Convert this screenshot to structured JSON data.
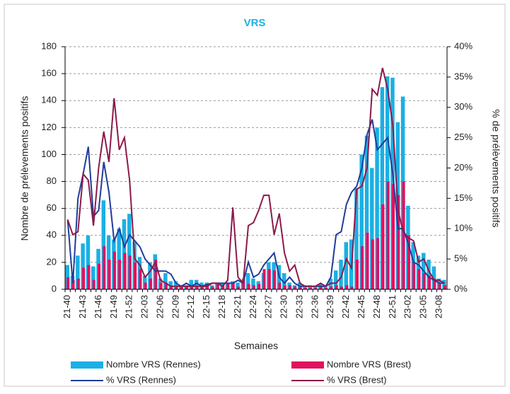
{
  "chart_data": {
    "type": "bar-line",
    "title": "VRS",
    "x_label": "Semaines",
    "y_label": "Nombre de prélèvements positifs",
    "y2_label": "% de prélèvements positifs",
    "categories": [
      "21-40",
      null,
      null,
      "21-43",
      null,
      null,
      "21-46",
      null,
      null,
      "21-49",
      null,
      null,
      "21-52",
      null,
      null,
      "22-03",
      null,
      null,
      "22-06",
      null,
      null,
      "22-09",
      null,
      null,
      "22-12",
      null,
      null,
      "22-15",
      null,
      null,
      "22-18",
      null,
      null,
      "22-21",
      null,
      null,
      "22-24",
      null,
      null,
      "22-27",
      null,
      null,
      "22-30",
      null,
      null,
      "22-33",
      null,
      null,
      "22-36",
      null,
      null,
      "22-39",
      null,
      null,
      "22-42",
      null,
      null,
      "22-45",
      null,
      null,
      "22-48",
      null,
      null,
      "22-51",
      null,
      null,
      "23-02",
      null,
      null,
      "23-05",
      null,
      null,
      "23-08",
      null
    ],
    "ylim": [
      0,
      180
    ],
    "yticks": [
      0,
      20,
      40,
      60,
      80,
      100,
      120,
      140,
      160,
      180
    ],
    "y2lim": [
      0,
      40
    ],
    "y2ticks": [
      {
        "value": 0,
        "label": "0%"
      },
      {
        "value": 5,
        "label": "5%"
      },
      {
        "value": 10,
        "label": "10%"
      },
      {
        "value": 15,
        "label": "15%"
      },
      {
        "value": 20,
        "label": "20%"
      },
      {
        "value": 25,
        "label": "25%"
      },
      {
        "value": 30,
        "label": "30%"
      },
      {
        "value": 35,
        "label": "35%"
      },
      {
        "value": 40,
        "label": "40%"
      }
    ],
    "grid": true,
    "series": [
      {
        "name": "Nombre VRS (Rennes)",
        "kind": "bar",
        "color": "#1bb0e4",
        "values": [
          18,
          10,
          25,
          34,
          40,
          17,
          30,
          66,
          40,
          37,
          45,
          52,
          56,
          35,
          24,
          10,
          20,
          26,
          8,
          12,
          6,
          6,
          3,
          3,
          7,
          7,
          5,
          5,
          3,
          5,
          5,
          4,
          6,
          5,
          7,
          12,
          8,
          6,
          12,
          20,
          20,
          18,
          12,
          5,
          3,
          5,
          3,
          3,
          2,
          4,
          2,
          8,
          14,
          22,
          35,
          37,
          75,
          100,
          114,
          90,
          120,
          150,
          158,
          157,
          124,
          143,
          62,
          35,
          25,
          27,
          22,
          17,
          8,
          7
        ]
      },
      {
        "name": "Nombre VRS (Brest)",
        "kind": "bar",
        "color": "#e0115f",
        "values": [
          9,
          7,
          8,
          16,
          18,
          7,
          19,
          32,
          22,
          28,
          22,
          27,
          25,
          20,
          15,
          5,
          8,
          22,
          5,
          5,
          2,
          2,
          2,
          2,
          3,
          2,
          2,
          3,
          2,
          4,
          3,
          5,
          5,
          2,
          8,
          4,
          3,
          4,
          15,
          15,
          14,
          5,
          3,
          3,
          2,
          2,
          1,
          1,
          1,
          2,
          1,
          2,
          3,
          2,
          3,
          2,
          22,
          32,
          42,
          37,
          38,
          63,
          80,
          78,
          70,
          80,
          40,
          20,
          15,
          12,
          10,
          8,
          4,
          3
        ]
      },
      {
        "name": "% VRS (Rennes)",
        "kind": "line",
        "axis": "y2",
        "color": "#1f3c99",
        "values": [
          11.5,
          1,
          15,
          19,
          23.5,
          12,
          13,
          21,
          16,
          8,
          10,
          7,
          9,
          8,
          7,
          5,
          4,
          3,
          3,
          3,
          2.5,
          1,
          0.5,
          1,
          0.5,
          1,
          0.5,
          0.8,
          1,
          1,
          1,
          1,
          1,
          1.5,
          1,
          4.5,
          2,
          2.5,
          4,
          5,
          6,
          2,
          1,
          2,
          1,
          0.5,
          0.5,
          0.5,
          0.5,
          0.5,
          0.5,
          2,
          9,
          9.5,
          14,
          16,
          17,
          20,
          25.5,
          28,
          23,
          24,
          25,
          19,
          10,
          10,
          7.5,
          4.5,
          4,
          3,
          2,
          1.5,
          1,
          1
        ]
      },
      {
        "name": "% VRS (Brest)",
        "kind": "line",
        "axis": "y2",
        "color": "#8b1a4a",
        "values": [
          11.5,
          9,
          9.5,
          19,
          18,
          10.5,
          20,
          26,
          21,
          31.5,
          23,
          25,
          18,
          5,
          4,
          2,
          3,
          4.5,
          1.5,
          1,
          0.5,
          0.5,
          0.5,
          0.5,
          0.5,
          0.5,
          0.5,
          0.5,
          1,
          1,
          0.5,
          1.5,
          13.5,
          2,
          1,
          10.5,
          11,
          13,
          15.5,
          15.5,
          9,
          12.5,
          6,
          3,
          4,
          1,
          0.5,
          0.5,
          0.5,
          1,
          0.5,
          1,
          1,
          2,
          5,
          3.5,
          16.5,
          17,
          20,
          33,
          32,
          36.5,
          33,
          27,
          13,
          9.5,
          8.5,
          8,
          4.5,
          5,
          3,
          1.5,
          1.5,
          1
        ]
      }
    ]
  }
}
